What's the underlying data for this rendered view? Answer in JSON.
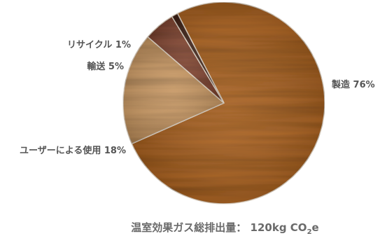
{
  "chart_data": {
    "type": "pie",
    "slices": [
      {
        "label": "製造",
        "value": 76,
        "value_label": "76%",
        "color": "#b8681f"
      },
      {
        "label": "ユーザーによる使用",
        "value": 18,
        "value_label": "18%",
        "color": "#d9a46a"
      },
      {
        "label": "輸送",
        "value": 5,
        "value_label": "5%",
        "color": "#8c4a34"
      },
      {
        "label": "リサイクル",
        "value": 1,
        "value_label": "1%",
        "color": "#4a2a1e"
      }
    ],
    "texture": "wood-grain"
  },
  "footer": {
    "label": "温室効果ガス総排出量",
    "separator": "：",
    "value_number": "120kg",
    "unit_prefix": "CO",
    "unit_subscript": "2",
    "unit_suffix": "e"
  }
}
